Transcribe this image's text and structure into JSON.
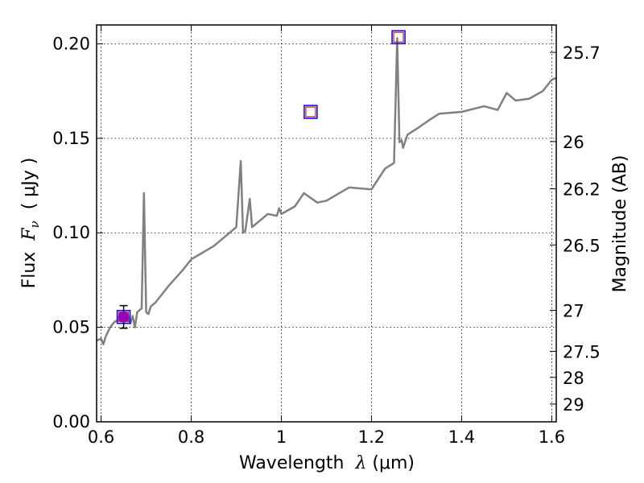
{
  "chart_data": {
    "type": "line",
    "title": "",
    "xlabel_parts": {
      "prefix": "Wavelength  ",
      "symbol": "λ",
      "unit": " (μm)"
    },
    "ylabel_parts": {
      "prefix": "Flux  ",
      "symbol": "F",
      "sub": "ν",
      "unit": "  ( μJy )"
    },
    "y2label": "Magnitude (AB)",
    "xlim": [
      0.59,
      1.61
    ],
    "ylim": [
      0.0,
      0.21
    ],
    "xticks": [
      0.6,
      0.8,
      1.0,
      1.2,
      1.4,
      1.6
    ],
    "xtick_labels": [
      "0.6",
      "0.8",
      "1",
      "1.2",
      "1.4",
      "1.6"
    ],
    "yticks": [
      0.0,
      0.05,
      0.1,
      0.15,
      0.2
    ],
    "ytick_labels": [
      "0.00",
      "0.05",
      "0.10",
      "0.15",
      "0.20"
    ],
    "y2ticks": [
      {
        "label": "25.7",
        "flux": 0.1955
      },
      {
        "label": "26",
        "flux": 0.1483
      },
      {
        "label": "26.2",
        "flux": 0.1233
      },
      {
        "label": "26.5",
        "flux": 0.0936
      },
      {
        "label": "27",
        "flux": 0.059
      },
      {
        "label": "27.5",
        "flux": 0.0373
      },
      {
        "label": "28",
        "flux": 0.0235
      },
      {
        "label": "29",
        "flux": 0.0094
      }
    ],
    "grid": true,
    "series": [
      {
        "name": "spectrum",
        "color": "#808080",
        "x": [
          0.59,
          0.6,
          0.605,
          0.61,
          0.62,
          0.63,
          0.64,
          0.65,
          0.66,
          0.665,
          0.67,
          0.675,
          0.68,
          0.69,
          0.695,
          0.7,
          0.705,
          0.71,
          0.72,
          0.73,
          0.75,
          0.78,
          0.8,
          0.85,
          0.9,
          0.91,
          0.915,
          0.92,
          0.93,
          0.935,
          0.94,
          0.97,
          0.99,
          0.995,
          1.0,
          1.03,
          1.05,
          1.08,
          1.1,
          1.15,
          1.2,
          1.23,
          1.25,
          1.257,
          1.262,
          1.267,
          1.27,
          1.28,
          1.3,
          1.33,
          1.35,
          1.4,
          1.45,
          1.48,
          1.5,
          1.52,
          1.55,
          1.58,
          1.6,
          1.61
        ],
        "y": [
          0.043,
          0.044,
          0.041,
          0.045,
          0.05,
          0.053,
          0.054,
          0.056,
          0.055,
          0.052,
          0.056,
          0.05,
          0.058,
          0.06,
          0.121,
          0.058,
          0.057,
          0.061,
          0.063,
          0.066,
          0.072,
          0.08,
          0.086,
          0.093,
          0.103,
          0.138,
          0.1,
          0.101,
          0.118,
          0.103,
          0.104,
          0.11,
          0.109,
          0.113,
          0.11,
          0.114,
          0.121,
          0.116,
          0.117,
          0.124,
          0.123,
          0.134,
          0.137,
          0.203,
          0.148,
          0.149,
          0.145,
          0.152,
          0.155,
          0.16,
          0.163,
          0.164,
          0.167,
          0.165,
          0.174,
          0.17,
          0.171,
          0.175,
          0.181,
          0.182
        ]
      }
    ],
    "photometry": [
      {
        "name": "photometric-point-0.65",
        "x": 0.65,
        "y": 0.0555,
        "yerr": 0.006,
        "marker_color": "#9b00b7"
      },
      {
        "name": "photometric-point-1.06",
        "x": 1.065,
        "y": 0.164
      },
      {
        "name": "photometric-point-1.26",
        "x": 1.26,
        "y": 0.2035
      }
    ],
    "colors": {
      "spectrum": "#808080",
      "square_outer": "#0000ff",
      "square_inner": "#cc2200",
      "point": "#9b00b7",
      "errorbar": "#000000"
    }
  }
}
